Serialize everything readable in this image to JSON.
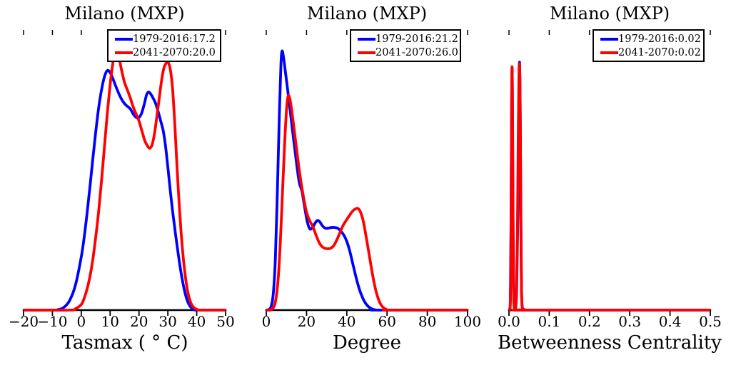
{
  "figure": {
    "background": "#ffffff",
    "axis_color": "#000000",
    "y_axis_visible": false,
    "y_units": "relative density (0-1, no y axis drawn)"
  },
  "chart_data": [
    {
      "type": "line",
      "title": "Milano (MXP)",
      "xlabel": "Tasmax ( ° C)",
      "xlim": [
        -20,
        50
      ],
      "grid": false,
      "legend_position": "upper right",
      "xticks": {
        "values": [
          -20,
          -10,
          0,
          10,
          20,
          30,
          40,
          50
        ],
        "labels": [
          "−20",
          "−10",
          "0",
          "10",
          "20",
          "30",
          "40",
          "50"
        ]
      },
      "series": [
        {
          "name": "1979-2016",
          "label": "1979-2016:17.2",
          "color": "#0000ff",
          "points": [
            [
              -20,
              0
            ],
            [
              -10,
              0
            ],
            [
              -8,
              0.002
            ],
            [
              -6,
              0.01
            ],
            [
              -4,
              0.035
            ],
            [
              -2,
              0.09
            ],
            [
              0,
              0.19
            ],
            [
              1,
              0.26
            ],
            [
              2,
              0.345
            ],
            [
              3,
              0.44
            ],
            [
              4,
              0.54
            ],
            [
              5,
              0.635
            ],
            [
              6,
              0.72
            ],
            [
              7,
              0.785
            ],
            [
              8,
              0.832
            ],
            [
              9,
              0.855
            ],
            [
              10,
              0.848
            ],
            [
              11,
              0.825
            ],
            [
              12,
              0.798
            ],
            [
              13,
              0.773
            ],
            [
              14,
              0.752
            ],
            [
              15,
              0.737
            ],
            [
              16,
              0.727
            ],
            [
              17,
              0.718
            ],
            [
              18,
              0.7
            ],
            [
              19,
              0.688
            ],
            [
              19.8,
              0.686
            ],
            [
              20.8,
              0.7
            ],
            [
              21.8,
              0.734
            ],
            [
              22.6,
              0.768
            ],
            [
              23.2,
              0.778
            ],
            [
              23.8,
              0.775
            ],
            [
              24.6,
              0.762
            ],
            [
              25.6,
              0.742
            ],
            [
              26.6,
              0.71
            ],
            [
              27.6,
              0.672
            ],
            [
              28.4,
              0.64
            ],
            [
              29.2,
              0.585
            ],
            [
              30,
              0.51
            ],
            [
              30.8,
              0.43
            ],
            [
              31.8,
              0.34
            ],
            [
              32.8,
              0.26
            ],
            [
              33.8,
              0.185
            ],
            [
              34.8,
              0.12
            ],
            [
              35.8,
              0.068
            ],
            [
              36.8,
              0.032
            ],
            [
              37.8,
              0.012
            ],
            [
              39,
              0.002
            ],
            [
              40.5,
              0
            ],
            [
              50,
              0
            ]
          ]
        },
        {
          "name": "2041-2070",
          "label": "2041-2070:20.0",
          "color": "#ff0000",
          "points": [
            [
              -20,
              0
            ],
            [
              -4,
              0
            ],
            [
              -2,
              0.005
            ],
            [
              0,
              0.02
            ],
            [
              1,
              0.042
            ],
            [
              2,
              0.075
            ],
            [
              3,
              0.12
            ],
            [
              4,
              0.18
            ],
            [
              5,
              0.26
            ],
            [
              6,
              0.35
            ],
            [
              7,
              0.46
            ],
            [
              8,
              0.58
            ],
            [
              9,
              0.7
            ],
            [
              10,
              0.805
            ],
            [
              10.8,
              0.872
            ],
            [
              11.6,
              0.915
            ],
            [
              12.3,
              0.925
            ],
            [
              13,
              0.905
            ],
            [
              14,
              0.855
            ],
            [
              15,
              0.812
            ],
            [
              16,
              0.785
            ],
            [
              17,
              0.757
            ],
            [
              18,
              0.725
            ],
            [
              19,
              0.7
            ],
            [
              20,
              0.675
            ],
            [
              21,
              0.64
            ],
            [
              22,
              0.605
            ],
            [
              23,
              0.585
            ],
            [
              23.8,
              0.578
            ],
            [
              24.6,
              0.592
            ],
            [
              25.4,
              0.632
            ],
            [
              26.2,
              0.692
            ],
            [
              27,
              0.755
            ],
            [
              27.8,
              0.818
            ],
            [
              28.6,
              0.863
            ],
            [
              29.3,
              0.88
            ],
            [
              30,
              0.885
            ],
            [
              30.8,
              0.862
            ],
            [
              31.6,
              0.795
            ],
            [
              32.4,
              0.665
            ],
            [
              33.1,
              0.525
            ],
            [
              33.8,
              0.4
            ],
            [
              34.6,
              0.275
            ],
            [
              35.4,
              0.18
            ],
            [
              36.2,
              0.11
            ],
            [
              37,
              0.06
            ],
            [
              38,
              0.025
            ],
            [
              39,
              0.009
            ],
            [
              40,
              0.003
            ],
            [
              41.5,
              0
            ],
            [
              50,
              0
            ]
          ]
        }
      ]
    },
    {
      "type": "line",
      "title": "Milano (MXP)",
      "xlabel": "Degree",
      "xlim": [
        0,
        100
      ],
      "grid": false,
      "legend_position": "upper right",
      "xticks": {
        "values": [
          0,
          20,
          40,
          60,
          80,
          100
        ],
        "labels": [
          "0",
          "20",
          "40",
          "60",
          "80",
          "100"
        ]
      },
      "series": [
        {
          "name": "1979-2016",
          "label": "1979-2016:21.2",
          "color": "#0000ff",
          "points": [
            [
              0,
              0
            ],
            [
              1.5,
              0.003
            ],
            [
              2.5,
              0.015
            ],
            [
              3.5,
              0.06
            ],
            [
              4.5,
              0.18
            ],
            [
              5.5,
              0.42
            ],
            [
              6.5,
              0.7
            ],
            [
              7.3,
              0.88
            ],
            [
              7.9,
              0.925
            ],
            [
              8.7,
              0.895
            ],
            [
              9.6,
              0.845
            ],
            [
              10.6,
              0.788
            ],
            [
              11.7,
              0.722
            ],
            [
              12.8,
              0.655
            ],
            [
              14,
              0.585
            ],
            [
              15.2,
              0.515
            ],
            [
              16.4,
              0.455
            ],
            [
              17.7,
              0.425
            ],
            [
              19,
              0.37
            ],
            [
              20.3,
              0.318
            ],
            [
              21.6,
              0.29
            ],
            [
              23,
              0.295
            ],
            [
              24.2,
              0.31
            ],
            [
              25.4,
              0.32
            ],
            [
              26.6,
              0.315
            ],
            [
              28,
              0.3
            ],
            [
              29.5,
              0.292
            ],
            [
              31,
              0.293
            ],
            [
              32.5,
              0.295
            ],
            [
              34,
              0.295
            ],
            [
              35.5,
              0.292
            ],
            [
              37,
              0.282
            ],
            [
              38.5,
              0.268
            ],
            [
              40,
              0.245
            ],
            [
              41.5,
              0.21
            ],
            [
              43,
              0.165
            ],
            [
              44.5,
              0.12
            ],
            [
              46,
              0.08
            ],
            [
              47.5,
              0.05
            ],
            [
              49,
              0.028
            ],
            [
              50.5,
              0.014
            ],
            [
              52,
              0.006
            ],
            [
              54,
              0.001
            ],
            [
              56,
              0
            ],
            [
              100,
              0
            ]
          ]
        },
        {
          "name": "2041-2070",
          "label": "2041-2070:26.0",
          "color": "#ff0000",
          "points": [
            [
              0,
              0
            ],
            [
              2,
              0
            ],
            [
              3,
              0.005
            ],
            [
              4,
              0.015
            ],
            [
              5,
              0.05
            ],
            [
              6,
              0.12
            ],
            [
              7,
              0.245
            ],
            [
              8,
              0.41
            ],
            [
              9,
              0.575
            ],
            [
              10,
              0.71
            ],
            [
              10.8,
              0.763
            ],
            [
              11.7,
              0.755
            ],
            [
              12.7,
              0.71
            ],
            [
              13.8,
              0.648
            ],
            [
              15,
              0.578
            ],
            [
              16.2,
              0.51
            ],
            [
              17.4,
              0.45
            ],
            [
              18.7,
              0.395
            ],
            [
              20,
              0.35
            ],
            [
              21.5,
              0.32
            ],
            [
              23,
              0.3
            ],
            [
              24.5,
              0.272
            ],
            [
              26,
              0.245
            ],
            [
              27.5,
              0.228
            ],
            [
              29,
              0.221
            ],
            [
              30.5,
              0.219
            ],
            [
              32,
              0.221
            ],
            [
              33.5,
              0.23
            ],
            [
              35,
              0.25
            ],
            [
              36.5,
              0.275
            ],
            [
              38,
              0.3
            ],
            [
              39.5,
              0.318
            ],
            [
              41,
              0.334
            ],
            [
              42.5,
              0.35
            ],
            [
              44,
              0.36
            ],
            [
              45.5,
              0.363
            ],
            [
              46.8,
              0.35
            ],
            [
              48.2,
              0.317
            ],
            [
              49.6,
              0.262
            ],
            [
              51,
              0.203
            ],
            [
              52.4,
              0.143
            ],
            [
              53.8,
              0.09
            ],
            [
              55.2,
              0.05
            ],
            [
              56.6,
              0.024
            ],
            [
              58,
              0.01
            ],
            [
              59.5,
              0.003
            ],
            [
              61.5,
              0
            ],
            [
              100,
              0
            ]
          ]
        }
      ]
    },
    {
      "type": "line",
      "title": "Milano (MXP)",
      "xlabel": "Betweenness Centrality",
      "xlim": [
        0,
        0.5
      ],
      "grid": false,
      "legend_position": "upper right",
      "xticks": {
        "values": [
          0.0,
          0.1,
          0.2,
          0.3,
          0.4,
          0.5
        ],
        "labels": [
          "0.0",
          "0.1",
          "0.2",
          "0.3",
          "0.4",
          "0.5"
        ]
      },
      "series": [
        {
          "name": "1979-2016",
          "label": "1979-2016:0.02",
          "color": "#0000ff",
          "points": [
            [
              0,
              0
            ],
            [
              0.0018,
              0.003
            ],
            [
              0.0035,
              0.045
            ],
            [
              0.005,
              0.3
            ],
            [
              0.0063,
              0.68
            ],
            [
              0.0077,
              0.865
            ],
            [
              0.009,
              0.68
            ],
            [
              0.0103,
              0.3
            ],
            [
              0.0118,
              0.06
            ],
            [
              0.0133,
              0.012
            ],
            [
              0.0148,
              0.005
            ],
            [
              0.016,
              0.01
            ],
            [
              0.019,
              0.07
            ],
            [
              0.022,
              0.33
            ],
            [
              0.0245,
              0.72
            ],
            [
              0.0262,
              0.885
            ],
            [
              0.028,
              0.7
            ],
            [
              0.0295,
              0.32
            ],
            [
              0.031,
              0.08
            ],
            [
              0.0325,
              0.018
            ],
            [
              0.034,
              0.006
            ],
            [
              0.037,
              0.002
            ],
            [
              0.041,
              0.001
            ],
            [
              0.047,
              0
            ],
            [
              0.5,
              0
            ]
          ]
        },
        {
          "name": "2041-2070",
          "label": "2041-2070:0.02",
          "color": "#ff0000",
          "points": [
            [
              0,
              0
            ],
            [
              0.0015,
              0
            ],
            [
              0.003,
              0.012
            ],
            [
              0.0045,
              0.13
            ],
            [
              0.0058,
              0.48
            ],
            [
              0.0069,
              0.8
            ],
            [
              0.0077,
              0.868
            ],
            [
              0.0085,
              0.78
            ],
            [
              0.0096,
              0.44
            ],
            [
              0.0108,
              0.12
            ],
            [
              0.012,
              0.025
            ],
            [
              0.0134,
              0.006
            ],
            [
              0.0148,
              0.002
            ],
            [
              0.0165,
              0.008
            ],
            [
              0.0185,
              0.05
            ],
            [
              0.0208,
              0.26
            ],
            [
              0.023,
              0.62
            ],
            [
              0.0248,
              0.845
            ],
            [
              0.0262,
              0.872
            ],
            [
              0.0276,
              0.78
            ],
            [
              0.029,
              0.46
            ],
            [
              0.0305,
              0.14
            ],
            [
              0.032,
              0.03
            ],
            [
              0.0335,
              0.008
            ],
            [
              0.036,
              0.002
            ],
            [
              0.04,
              0.001
            ],
            [
              0.046,
              0
            ],
            [
              0.5,
              0
            ]
          ]
        }
      ]
    }
  ]
}
